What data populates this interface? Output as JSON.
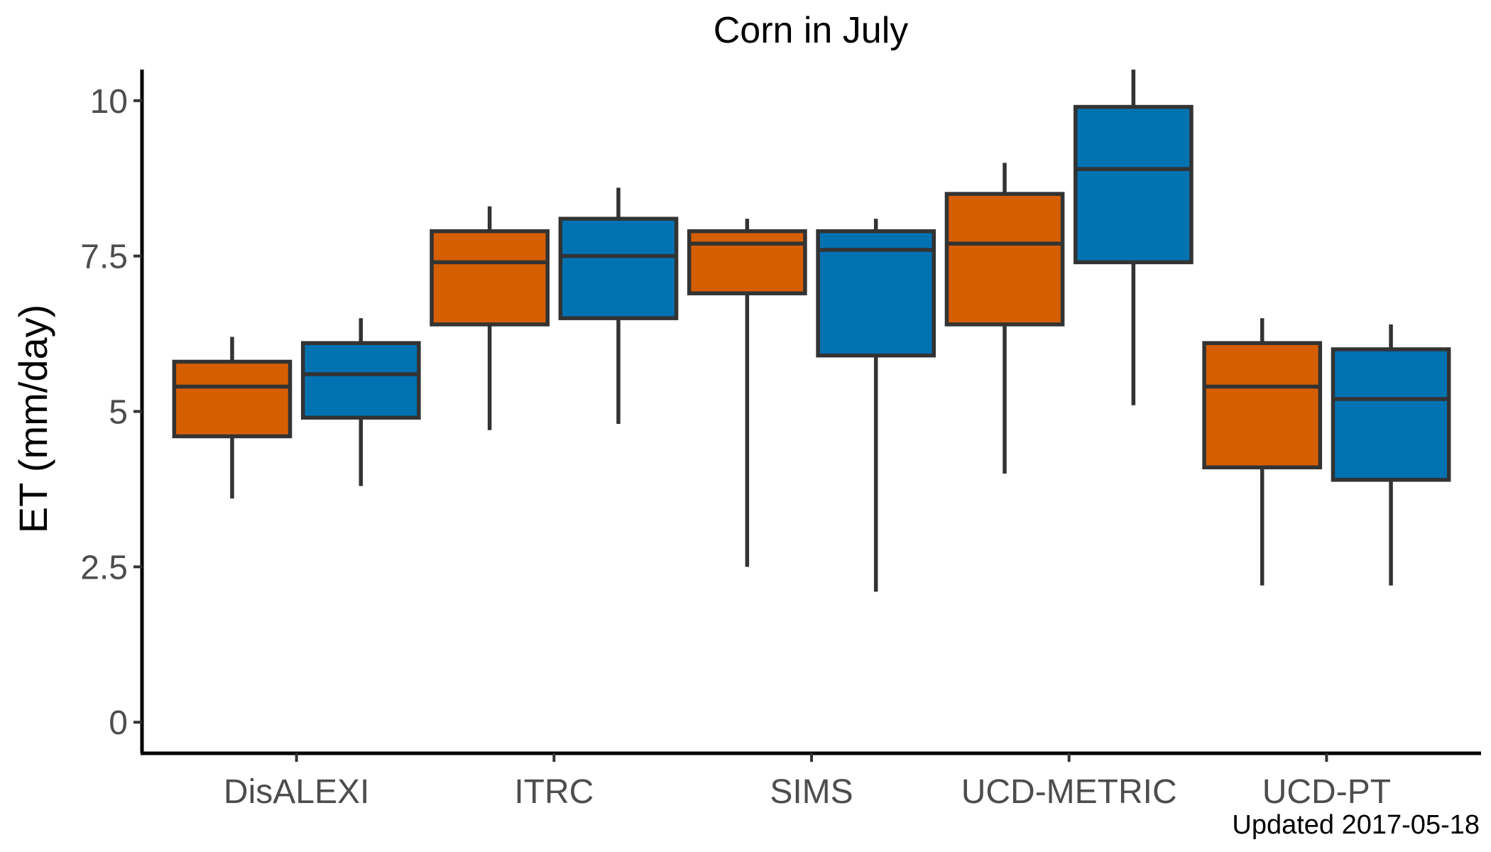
{
  "chart_data": {
    "type": "box",
    "title": "Corn in July",
    "xlabel": "",
    "ylabel": "ET (mm/day)",
    "ylim": [
      -0.5,
      10.5
    ],
    "yticks": [
      0,
      2.5,
      5,
      7.5,
      10
    ],
    "ytick_labels": [
      "0",
      "2.5",
      "5",
      "7.5",
      "10"
    ],
    "categories": [
      "DisALEXI",
      "ITRC",
      "SIMS",
      "UCD-METRIC",
      "UCD-PT"
    ],
    "grid": false,
    "legend": "none",
    "series": [
      {
        "color": "#D55E00",
        "boxes": [
          {
            "min": 3.6,
            "q1": 4.6,
            "median": 5.4,
            "q3": 5.8,
            "max": 6.2
          },
          {
            "min": 4.7,
            "q1": 6.4,
            "median": 7.4,
            "q3": 7.9,
            "max": 8.3
          },
          {
            "min": 2.5,
            "q1": 6.9,
            "median": 7.7,
            "q3": 7.9,
            "max": 8.1
          },
          {
            "min": 4.0,
            "q1": 6.4,
            "median": 7.7,
            "q3": 8.5,
            "max": 9.0
          },
          {
            "min": 2.2,
            "q1": 4.1,
            "median": 5.4,
            "q3": 6.1,
            "max": 6.5
          }
        ]
      },
      {
        "color": "#0072B2",
        "boxes": [
          {
            "min": 3.8,
            "q1": 4.9,
            "median": 5.6,
            "q3": 6.1,
            "max": 6.5
          },
          {
            "min": 4.8,
            "q1": 6.5,
            "median": 7.5,
            "q3": 8.1,
            "max": 8.6
          },
          {
            "min": 2.1,
            "q1": 5.9,
            "median": 7.6,
            "q3": 7.9,
            "max": 8.1
          },
          {
            "min": 5.1,
            "q1": 7.4,
            "median": 8.9,
            "q3": 9.9,
            "max": 10.5
          },
          {
            "min": 2.2,
            "q1": 3.9,
            "median": 5.2,
            "q3": 6.0,
            "max": 6.4
          }
        ]
      }
    ],
    "caption": "Updated  2017-05-18"
  }
}
